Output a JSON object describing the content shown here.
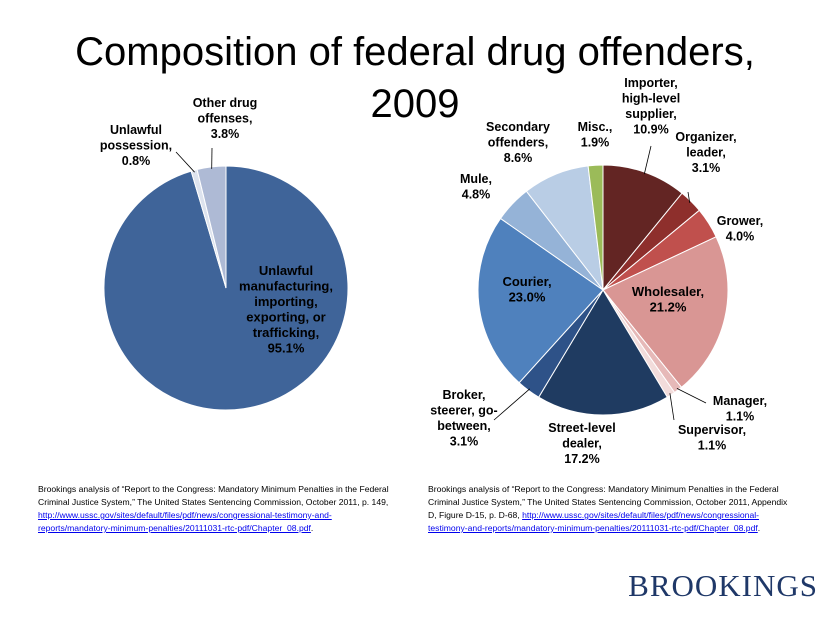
{
  "title": "Composition of federal drug offenders, 2009",
  "title_lines": [
    "Composition of federal drug offenders,",
    "2009"
  ],
  "chart_data": [
    {
      "type": "pie",
      "title": "Composition of federal drug offenders, 2009 (by offense)",
      "slices": [
        {
          "name": "Unlawful manufacturing, importing, exporting, or trafficking",
          "value": 95.1,
          "color": "#3f6499",
          "label_lines": [
            "Unlawful",
            "manufacturing,",
            "importing,",
            "exporting, or",
            "trafficking,",
            "95.1%"
          ]
        },
        {
          "name": "Unlawful possession",
          "value": 0.8,
          "color": "#dde3ee",
          "label_lines": [
            "Unlawful",
            "possession,",
            "0.8%"
          ]
        },
        {
          "name": "Other drug offenses",
          "value": 3.8,
          "color": "#aebad5",
          "label_lines": [
            "Other drug",
            "offenses,",
            "3.8%"
          ]
        }
      ]
    },
    {
      "type": "pie",
      "title": "Composition of federal drug offenders, 2009 (by function)",
      "slices": [
        {
          "name": "Importer, high-level supplier",
          "value": 10.9,
          "color": "#632523",
          "label_lines": [
            "Importer,",
            "high-level",
            "supplier,",
            "10.9%"
          ]
        },
        {
          "name": "Organizer, leader",
          "value": 3.1,
          "color": "#8e2f2c",
          "label_lines": [
            "Organizer,",
            "leader,",
            "3.1%"
          ]
        },
        {
          "name": "Grower",
          "value": 4.0,
          "color": "#c0504d",
          "label_lines": [
            "Grower,",
            "4.0%"
          ]
        },
        {
          "name": "Wholesaler",
          "value": 21.2,
          "color": "#d99694",
          "label_lines": [
            "Wholesaler,",
            "21.2%"
          ]
        },
        {
          "name": "Manager",
          "value": 1.1,
          "color": "#e6b9b8",
          "label_lines": [
            "Manager,",
            "1.1%"
          ]
        },
        {
          "name": "Supervisor",
          "value": 1.1,
          "color": "#f2dcdb",
          "label_lines": [
            "Supervisor,",
            "1.1%"
          ]
        },
        {
          "name": "Street-level dealer",
          "value": 17.2,
          "color": "#1f3b61",
          "label_lines": [
            "Street-level",
            "dealer,",
            "17.2%"
          ]
        },
        {
          "name": "Broker, steerer, go-between",
          "value": 3.1,
          "color": "#2e5288",
          "label_lines": [
            "Broker,",
            "steerer, go-",
            "between,",
            "3.1%"
          ]
        },
        {
          "name": "Courier",
          "value": 23.0,
          "color": "#4f81bd",
          "label_lines": [
            "Courier,",
            "23.0%"
          ]
        },
        {
          "name": "Mule",
          "value": 4.8,
          "color": "#95b3d7",
          "label_lines": [
            "Mule,",
            "4.8%"
          ]
        },
        {
          "name": "Secondary offenders",
          "value": 8.6,
          "color": "#b9cde5",
          "label_lines": [
            "Secondary",
            "offenders,",
            "8.6%"
          ]
        },
        {
          "name": "Misc.",
          "value": 1.9,
          "color": "#9bbb59",
          "label_lines": [
            "Misc.,",
            "1.9%"
          ]
        }
      ]
    }
  ],
  "source_left": {
    "text": "Brookings analysis of “Report to the Congress: Mandatory Minimum Penalties in the Federal Criminal Justice System,” The United States Sentencing Commission, October 2011, p. 149, ",
    "link": "http://www.ussc.gov/sites/default/files/pdf/news/congressional-testimony-and-reports/mandatory-minimum-penalties/20111031-rtc-pdf/Chapter_08.pdf",
    "tail": "."
  },
  "source_right": {
    "text": "Brookings analysis of “Report to the Congress: Mandatory Minimum Penalties in the Federal Criminal Justice System,” The United States Sentencing Commission, October 2011, Appendix D, Figure D-15, p. D-68, ",
    "link": "http://www.ussc.gov/sites/default/files/pdf/news/congressional-testimony-and-reports/mandatory-minimum-penalties/20111031-rtc-pdf/Chapter_08.pdf",
    "tail": "."
  },
  "brand": "BROOKINGS"
}
